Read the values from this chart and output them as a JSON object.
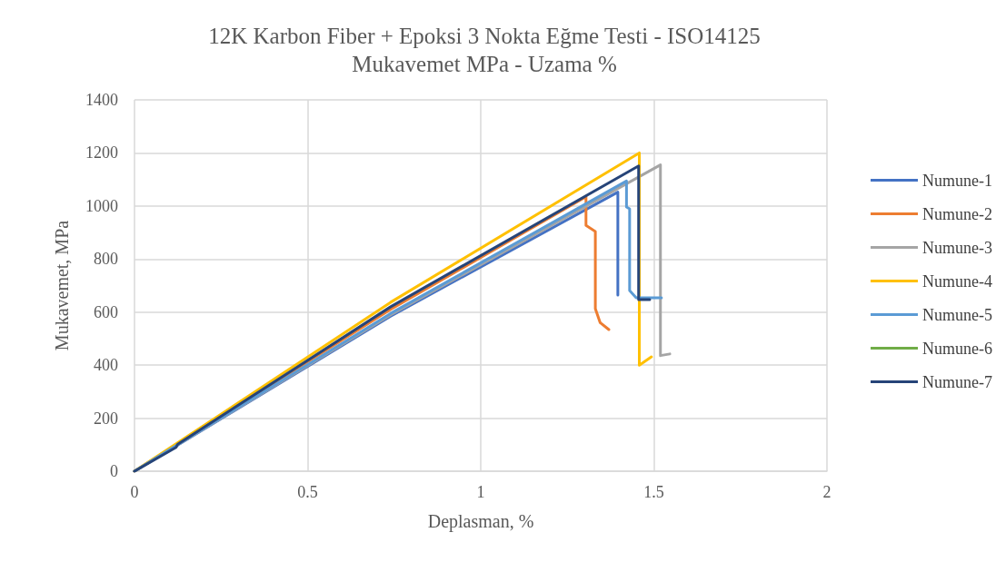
{
  "chart_data": {
    "type": "line",
    "title": "12K Karbon Fiber + Epoksi 3 Nokta Eğme Testi - ISO14125",
    "subtitle": "Mukavemet MPa - Uzama %",
    "xlabel": "Deplasman, %",
    "ylabel": "Mukavemet, MPa",
    "xlim": [
      0,
      2
    ],
    "xticks": [
      0,
      0.5,
      1,
      1.5,
      2
    ],
    "ylim": [
      0,
      1400
    ],
    "yticks": [
      0,
      200,
      400,
      600,
      800,
      1000,
      1200,
      1400
    ],
    "grid": true,
    "legend": "right",
    "marker": "none",
    "line_style": "solid",
    "series": [
      {
        "name": "Numune-1",
        "color": "#4472c4",
        "x": [
          0,
          0.74,
          1.396,
          1.396
        ],
        "values": [
          0,
          585,
          1052,
          664
        ]
      },
      {
        "name": "Numune-2",
        "color": "#ed7d31",
        "x": [
          0,
          0.74,
          1.304,
          1.304,
          1.331,
          1.331,
          1.345,
          1.37
        ],
        "values": [
          0,
          610,
          1035,
          927,
          904,
          613,
          560,
          534
        ]
      },
      {
        "name": "Numune-3",
        "color": "#a5a5a5",
        "x": [
          0,
          0.74,
          1.519,
          1.519,
          1.546
        ],
        "values": [
          0,
          590,
          1155,
          436,
          442
        ]
      },
      {
        "name": "Numune-4",
        "color": "#ffc000",
        "x": [
          0,
          0.74,
          1.458,
          1.458,
          1.493
        ],
        "values": [
          0,
          637,
          1200,
          400,
          431
        ]
      },
      {
        "name": "Numune-5",
        "color": "#5b9bd5",
        "x": [
          0,
          0.74,
          1.421,
          1.421,
          1.43,
          1.43,
          1.449,
          1.522
        ],
        "values": [
          0,
          595,
          1094,
          996,
          989,
          681,
          654,
          654
        ]
      },
      {
        "name": "Numune-6",
        "color": "#70ad47"
      },
      {
        "name": "Numune-7",
        "color": "#264478",
        "x": [
          0,
          0.12,
          0.125,
          0.74,
          1.456,
          1.456,
          1.488
        ],
        "values": [
          0,
          90,
          102,
          620,
          1151,
          647,
          647
        ]
      }
    ]
  }
}
